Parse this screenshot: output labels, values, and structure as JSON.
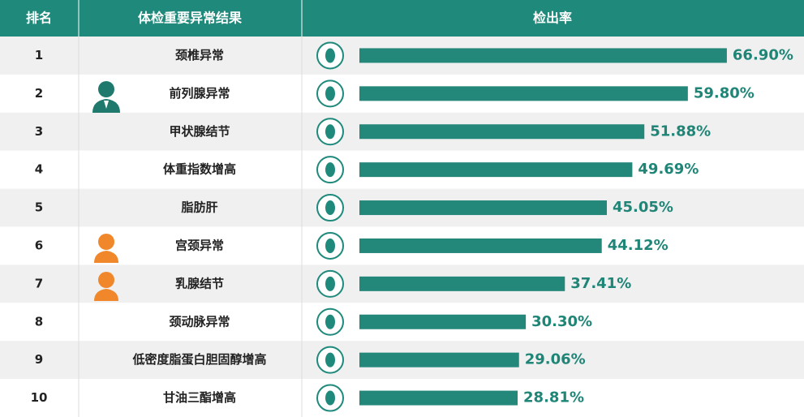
{
  "chart_data": {
    "type": "bar",
    "columns": [
      "排名",
      "体检重要异常结果",
      "检出率"
    ],
    "ranks": [
      1,
      2,
      3,
      4,
      5,
      6,
      7,
      8,
      9,
      10
    ],
    "categories": [
      "颈椎异常",
      "前列腺异常",
      "甲状腺结节",
      "体重指数增高",
      "脂肪肝",
      "宫颈异常",
      "乳腺结节",
      "颈动脉异常",
      "低密度脂蛋白胆固醇增高",
      "甘油三酯增高"
    ],
    "values": [
      66.9,
      59.8,
      51.88,
      49.69,
      45.05,
      44.12,
      37.41,
      30.3,
      29.06,
      28.81
    ],
    "value_labels": [
      "66.90%",
      "59.80%",
      "51.88%",
      "49.69%",
      "45.05%",
      "44.12%",
      "37.41%",
      "30.30%",
      "29.06%",
      "28.81%"
    ],
    "color": "#23877a"
  }
}
